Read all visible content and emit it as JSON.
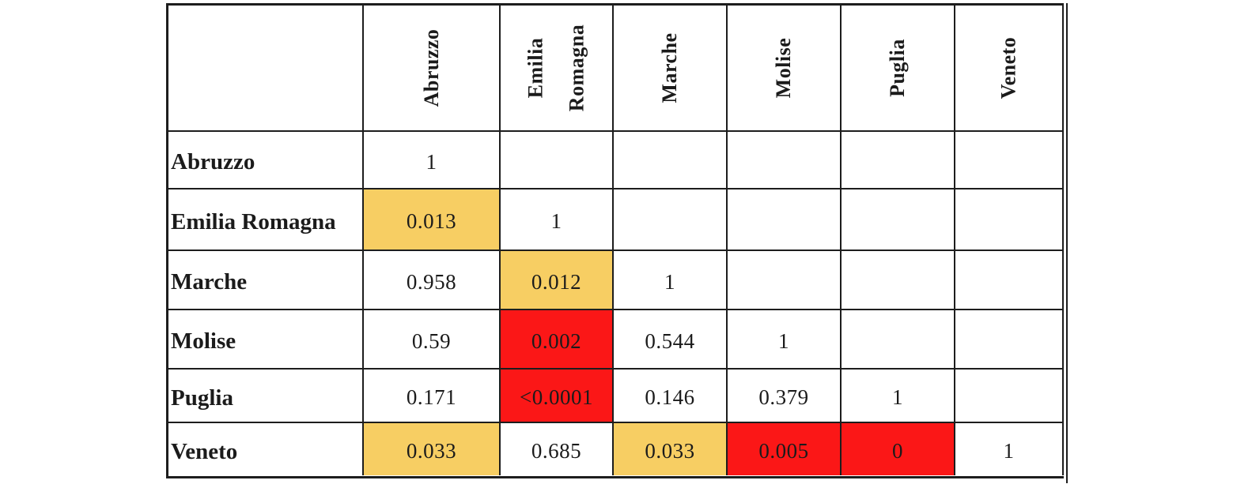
{
  "table": {
    "corner_label": "",
    "columns": [
      "Abruzzo",
      "Emilia Romagna",
      "Marche",
      "Molise",
      "Puglia",
      "Veneto"
    ],
    "rows": [
      {
        "label": "Abruzzo",
        "cells": [
          {
            "v": "1",
            "bg": "#FFFFFF"
          },
          {
            "v": "",
            "bg": "#FFFFFF"
          },
          {
            "v": "",
            "bg": "#FFFFFF"
          },
          {
            "v": "",
            "bg": "#FFFFFF"
          },
          {
            "v": "",
            "bg": "#FFFFFF"
          },
          {
            "v": "",
            "bg": "#FFFFFF"
          }
        ]
      },
      {
        "label": "Emilia Romagna",
        "cells": [
          {
            "v": "0.013",
            "bg": "#F7CE63"
          },
          {
            "v": "1",
            "bg": "#FFFFFF"
          },
          {
            "v": "",
            "bg": "#FFFFFF"
          },
          {
            "v": "",
            "bg": "#FFFFFF"
          },
          {
            "v": "",
            "bg": "#FFFFFF"
          },
          {
            "v": "",
            "bg": "#FFFFFF"
          }
        ]
      },
      {
        "label": "Marche",
        "cells": [
          {
            "v": "0.958",
            "bg": "#FFFFFF"
          },
          {
            "v": "0.012",
            "bg": "#F7CE63"
          },
          {
            "v": "1",
            "bg": "#FFFFFF"
          },
          {
            "v": "",
            "bg": "#FFFFFF"
          },
          {
            "v": "",
            "bg": "#FFFFFF"
          },
          {
            "v": "",
            "bg": "#FFFFFF"
          }
        ]
      },
      {
        "label": "Molise",
        "cells": [
          {
            "v": "0.59",
            "bg": "#FFFFFF"
          },
          {
            "v": "0.002",
            "bg": "#FB1717"
          },
          {
            "v": "0.544",
            "bg": "#FFFFFF"
          },
          {
            "v": "1",
            "bg": "#FFFFFF"
          },
          {
            "v": "",
            "bg": "#FFFFFF"
          },
          {
            "v": "",
            "bg": "#FFFFFF"
          }
        ]
      },
      {
        "label": "Puglia",
        "cells": [
          {
            "v": "0.171",
            "bg": "#FFFFFF"
          },
          {
            "v": "<0.0001",
            "bg": "#FB1717"
          },
          {
            "v": "0.146",
            "bg": "#FFFFFF"
          },
          {
            "v": "0.379",
            "bg": "#FFFFFF"
          },
          {
            "v": "1",
            "bg": "#FFFFFF"
          },
          {
            "v": "",
            "bg": "#FFFFFF"
          }
        ]
      },
      {
        "label": "Veneto",
        "cells": [
          {
            "v": "0.033",
            "bg": "#F7CE63"
          },
          {
            "v": "0.685",
            "bg": "#FFFFFF"
          },
          {
            "v": "0.033",
            "bg": "#F7CE63"
          },
          {
            "v": "0.005",
            "bg": "#FB1717"
          },
          {
            "v": "0",
            "bg": "#FB1717"
          },
          {
            "v": "1",
            "bg": "#FFFFFF"
          }
        ]
      }
    ]
  },
  "colors": {
    "highlight_yellow": "#F7CE63",
    "highlight_red": "#FB1717",
    "border": "#1D1D1D",
    "background": "#FFFFFF"
  },
  "chart_data": {
    "type": "table",
    "row_labels": [
      "Abruzzo",
      "Emilia Romagna",
      "Marche",
      "Molise",
      "Puglia",
      "Veneto"
    ],
    "column_labels": [
      "Abruzzo",
      "Emilia Romagna",
      "Marche",
      "Molise",
      "Puglia",
      "Veneto"
    ],
    "matrix": [
      [
        "1",
        "",
        "",
        "",
        "",
        ""
      ],
      [
        "0.013",
        "1",
        "",
        "",
        "",
        ""
      ],
      [
        "0.958",
        "0.012",
        "1",
        "",
        "",
        ""
      ],
      [
        "0.59",
        "0.002",
        "0.544",
        "1",
        "",
        ""
      ],
      [
        "0.171",
        "<0.0001",
        "0.146",
        "0.379",
        "1",
        ""
      ],
      [
        "0.033",
        "0.685",
        "0.033",
        "0.005",
        "0",
        "1"
      ]
    ],
    "cell_highlight": [
      [
        "white",
        "white",
        "white",
        "white",
        "white",
        "white"
      ],
      [
        "yellow",
        "white",
        "white",
        "white",
        "white",
        "white"
      ],
      [
        "white",
        "yellow",
        "white",
        "white",
        "white",
        "white"
      ],
      [
        "white",
        "red",
        "white",
        "white",
        "white",
        "white"
      ],
      [
        "white",
        "red",
        "white",
        "white",
        "white",
        "white"
      ],
      [
        "yellow",
        "white",
        "yellow",
        "red",
        "red",
        "white"
      ]
    ],
    "layout": "lower-triangular p-value matrix, diagonal = 1, rotated column headers"
  }
}
